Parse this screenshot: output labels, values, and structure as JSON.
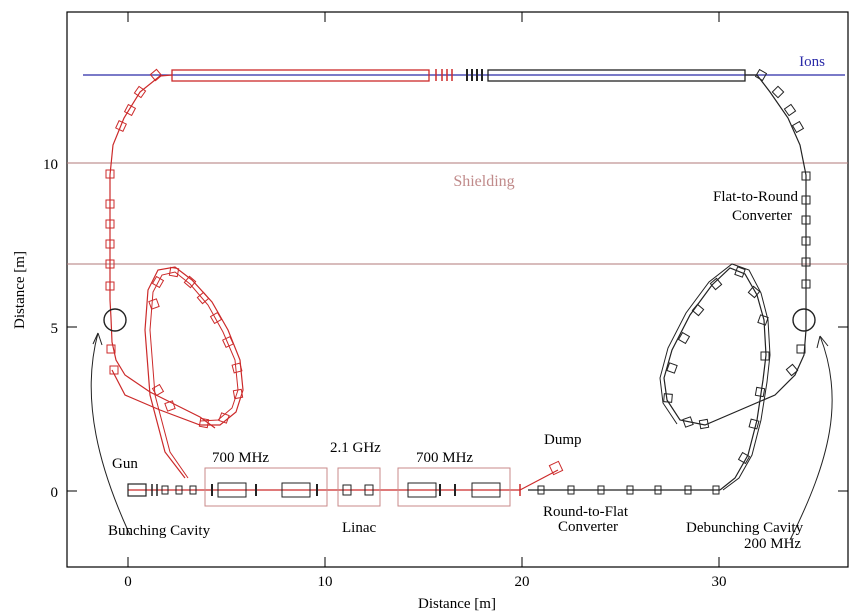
{
  "figure": {
    "xlabel": "Distance [m]",
    "ylabel": "Distance [m]",
    "x_ticks": [
      "0",
      "10",
      "20",
      "30"
    ],
    "y_ticks": [
      "0",
      "5",
      "10"
    ],
    "x_range": [
      -3,
      36
    ],
    "y_range": [
      -2,
      14.5
    ]
  },
  "levels": {
    "shielding_upper_m": 10,
    "shielding_lower_m": 7,
    "ion_line_m": 12.7
  },
  "labels": {
    "ions": "Ions",
    "shielding": "Shielding",
    "flat_to_round": [
      "Flat-to-Round",
      "Converter"
    ],
    "gun": "Gun",
    "bunching": "Bunching Cavity",
    "rf_700_left": "700 MHz",
    "rf_21ghz": "2.1 GHz",
    "rf_700_right": "700 MHz",
    "linac": "Linac",
    "dump": "Dump",
    "round_to_flat": [
      "Round-to-Flat",
      "Converter"
    ],
    "debunching": [
      "Debunching Cavity",
      "200 MHz"
    ]
  },
  "colors": {
    "electron_red": "#cc2a2a",
    "return_black": "#222222",
    "ion_blue": "#2a2aa8",
    "shielding": "#b07a7a",
    "rf_box": "#c98a8a",
    "shielding_text": "#c08a8a"
  }
}
